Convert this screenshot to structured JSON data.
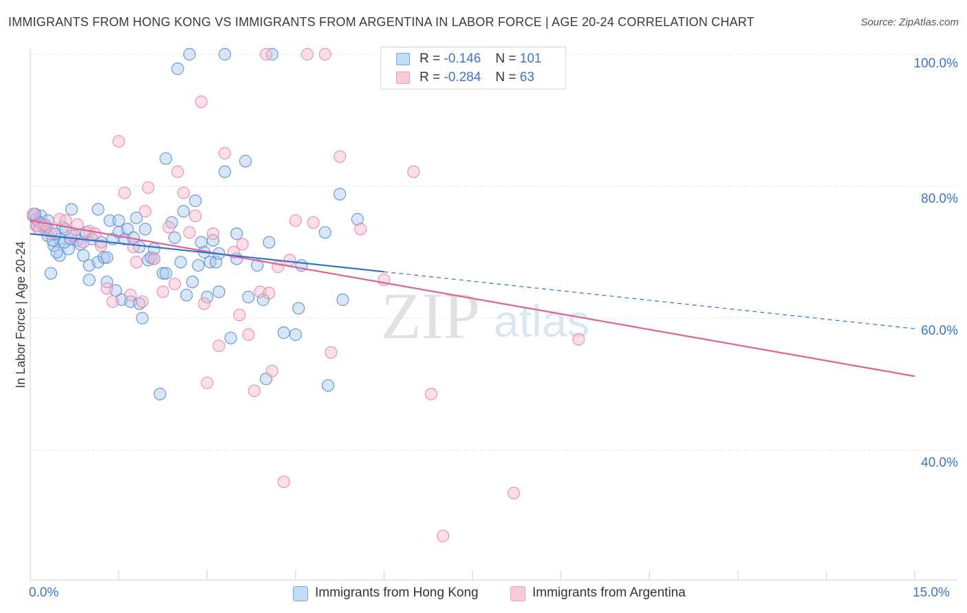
{
  "header": {
    "title": "IMMIGRANTS FROM HONG KONG VS IMMIGRANTS FROM ARGENTINA IN LABOR FORCE | AGE 20-24 CORRELATION CHART",
    "source": "Source: ZipAtlas.com"
  },
  "watermark": {
    "zip": "ZIP",
    "atlas": "atlas"
  },
  "legend_top": {
    "rows": [
      {
        "r_label": "R =",
        "r_value": "-0.146",
        "n_label": "N =",
        "n_value": "101"
      },
      {
        "r_label": "R =",
        "r_value": "-0.284",
        "n_label": "N =",
        "n_value": "63"
      }
    ]
  },
  "legend_bottom": {
    "items": [
      {
        "label": "Immigrants from Hong Kong"
      },
      {
        "label": "Immigrants from Argentina"
      }
    ]
  },
  "axes": {
    "x_min_label": "0.0%",
    "x_max_label": "15.0%",
    "y_label": "In Labor Force | Age 20-24",
    "y_ticks": [
      "100.0%",
      "80.0%",
      "60.0%",
      "40.0%"
    ]
  },
  "colors": {
    "hong_kong_fill": "#a8c8f0",
    "hong_kong_stroke": "#5b8fd8",
    "hong_kong_line": "#2f6fd0",
    "argentina_fill": "#f6b8cc",
    "argentina_stroke": "#e888a8",
    "argentina_line": "#e0608e",
    "tick_label": "#3b73c9",
    "grid": "#e2e2e2"
  },
  "chart_data": {
    "type": "scatter",
    "title": "IMMIGRANTS FROM HONG KONG VS IMMIGRANTS FROM ARGENTINA IN LABOR FORCE | AGE 20-24 CORRELATION CHART",
    "xlabel": "",
    "ylabel": "In Labor Force | Age 20-24",
    "xlim": [
      0,
      15
    ],
    "ylim": [
      20,
      102
    ],
    "y_ticks": [
      40,
      60,
      80,
      100
    ],
    "grid": true,
    "legend_position": "bottom",
    "series": [
      {
        "name": "Immigrants from Hong Kong",
        "r": -0.146,
        "n": 101,
        "trend": {
          "x_solid_end": 6.0,
          "x_end": 15.0,
          "y_start": 72.8,
          "y_end": 58.4
        },
        "points": [
          [
            0.05,
            75.5
          ],
          [
            0.1,
            75
          ],
          [
            0.12,
            74
          ],
          [
            0.18,
            75.5
          ],
          [
            0.2,
            74.2
          ],
          [
            0.25,
            73.5
          ],
          [
            0.3,
            74.8
          ],
          [
            0.3,
            72.5
          ],
          [
            0.35,
            66.8
          ],
          [
            0.4,
            71
          ],
          [
            0.5,
            69.5
          ],
          [
            0.5,
            72
          ],
          [
            0.55,
            73.8
          ],
          [
            0.6,
            73.5
          ],
          [
            0.65,
            70.5
          ],
          [
            0.7,
            76.5
          ],
          [
            0.75,
            72.5
          ],
          [
            0.8,
            71.8
          ],
          [
            0.85,
            71.2
          ],
          [
            0.9,
            69.5
          ],
          [
            0.95,
            73
          ],
          [
            1.0,
            65.8
          ],
          [
            1.0,
            68
          ],
          [
            1.05,
            72
          ],
          [
            1.15,
            68.5
          ],
          [
            1.15,
            76.5
          ],
          [
            1.2,
            71.5
          ],
          [
            1.25,
            69.2
          ],
          [
            1.3,
            65.5
          ],
          [
            1.3,
            69.2
          ],
          [
            1.35,
            74.8
          ],
          [
            1.4,
            72
          ],
          [
            1.45,
            64.2
          ],
          [
            1.5,
            74.8
          ],
          [
            1.5,
            73
          ],
          [
            1.55,
            62.8
          ],
          [
            1.6,
            72
          ],
          [
            1.65,
            73.5
          ],
          [
            1.7,
            62.5
          ],
          [
            1.75,
            72.2
          ],
          [
            1.8,
            75.2
          ],
          [
            1.85,
            70.8
          ],
          [
            1.85,
            62.2
          ],
          [
            1.9,
            60
          ],
          [
            1.95,
            73.5
          ],
          [
            2.0,
            68.8
          ],
          [
            2.05,
            69.2
          ],
          [
            2.1,
            69
          ],
          [
            2.1,
            70.5
          ],
          [
            2.2,
            48.5
          ],
          [
            2.25,
            66.8
          ],
          [
            2.3,
            66.8
          ],
          [
            2.3,
            84.2
          ],
          [
            2.4,
            74.5
          ],
          [
            2.45,
            72.2
          ],
          [
            2.5,
            97.8
          ],
          [
            2.55,
            68.5
          ],
          [
            2.6,
            76.2
          ],
          [
            2.65,
            63.5
          ],
          [
            2.7,
            100
          ],
          [
            2.75,
            65.5
          ],
          [
            2.8,
            77.8
          ],
          [
            2.85,
            68
          ],
          [
            2.9,
            71.5
          ],
          [
            2.95,
            70
          ],
          [
            3.0,
            63.2
          ],
          [
            3.05,
            68.5
          ],
          [
            3.1,
            71.8
          ],
          [
            3.15,
            68.5
          ],
          [
            3.2,
            64
          ],
          [
            3.2,
            69.8
          ],
          [
            3.3,
            100
          ],
          [
            3.3,
            82.2
          ],
          [
            3.4,
            57
          ],
          [
            3.5,
            69
          ],
          [
            3.5,
            72.8
          ],
          [
            3.65,
            83.8
          ],
          [
            3.7,
            63.2
          ],
          [
            3.85,
            68
          ],
          [
            3.95,
            62.8
          ],
          [
            4.0,
            50.8
          ],
          [
            4.05,
            71.5
          ],
          [
            4.1,
            100
          ],
          [
            4.3,
            57.8
          ],
          [
            4.5,
            57.5
          ],
          [
            4.55,
            61.5
          ],
          [
            4.6,
            68
          ],
          [
            5.0,
            73
          ],
          [
            5.05,
            49.8
          ],
          [
            5.25,
            78.8
          ],
          [
            5.3,
            62.8
          ],
          [
            5.55,
            75
          ],
          [
            0.08,
            75.8
          ],
          [
            0.15,
            74.5
          ],
          [
            0.22,
            74
          ],
          [
            0.28,
            73.8
          ],
          [
            0.38,
            71.8
          ],
          [
            0.42,
            72.8
          ],
          [
            0.45,
            70
          ],
          [
            0.58,
            71.5
          ],
          [
            0.68,
            72
          ]
        ]
      },
      {
        "name": "Immigrants from Argentina",
        "r": -0.284,
        "n": 63,
        "trend": {
          "x_solid_end": 15.0,
          "x_end": 15.0,
          "y_start": 74.8,
          "y_end": 51.2
        },
        "points": [
          [
            0.05,
            75.8
          ],
          [
            0.1,
            74
          ],
          [
            0.15,
            73.5
          ],
          [
            0.25,
            74.2
          ],
          [
            0.35,
            72.8
          ],
          [
            0.5,
            75
          ],
          [
            0.6,
            74.8
          ],
          [
            0.7,
            72.5
          ],
          [
            0.8,
            74.2
          ],
          [
            0.9,
            71.5
          ],
          [
            1.0,
            73.2
          ],
          [
            1.1,
            72.8
          ],
          [
            1.2,
            71
          ],
          [
            1.3,
            64.5
          ],
          [
            1.4,
            62.5
          ],
          [
            1.5,
            86.8
          ],
          [
            1.6,
            79
          ],
          [
            1.7,
            63.5
          ],
          [
            1.75,
            70.8
          ],
          [
            1.8,
            68.5
          ],
          [
            1.9,
            62.5
          ],
          [
            1.95,
            76.2
          ],
          [
            2.0,
            79.8
          ],
          [
            2.1,
            69
          ],
          [
            2.25,
            64
          ],
          [
            2.35,
            73.8
          ],
          [
            2.45,
            65.2
          ],
          [
            2.5,
            82.2
          ],
          [
            2.6,
            79
          ],
          [
            2.7,
            73
          ],
          [
            2.8,
            75.5
          ],
          [
            2.9,
            92.8
          ],
          [
            2.95,
            62.2
          ],
          [
            3.0,
            50.2
          ],
          [
            3.1,
            72.8
          ],
          [
            3.2,
            55.8
          ],
          [
            3.3,
            85
          ],
          [
            3.45,
            70
          ],
          [
            3.55,
            60.5
          ],
          [
            3.6,
            71.2
          ],
          [
            3.7,
            57.5
          ],
          [
            3.8,
            49
          ],
          [
            3.9,
            64
          ],
          [
            4.0,
            100
          ],
          [
            4.05,
            63.8
          ],
          [
            4.1,
            52
          ],
          [
            4.2,
            67.8
          ],
          [
            4.3,
            35.2
          ],
          [
            4.4,
            68.8
          ],
          [
            4.5,
            74.8
          ],
          [
            4.7,
            100
          ],
          [
            4.8,
            74.5
          ],
          [
            5.0,
            100
          ],
          [
            5.1,
            54.8
          ],
          [
            5.25,
            84.5
          ],
          [
            5.6,
            73.5
          ],
          [
            6.0,
            65.8
          ],
          [
            6.5,
            82.2
          ],
          [
            6.8,
            48.5
          ],
          [
            7.0,
            27
          ],
          [
            7.5,
            100
          ],
          [
            8.2,
            33.5
          ],
          [
            9.3,
            56.8
          ]
        ]
      }
    ]
  }
}
